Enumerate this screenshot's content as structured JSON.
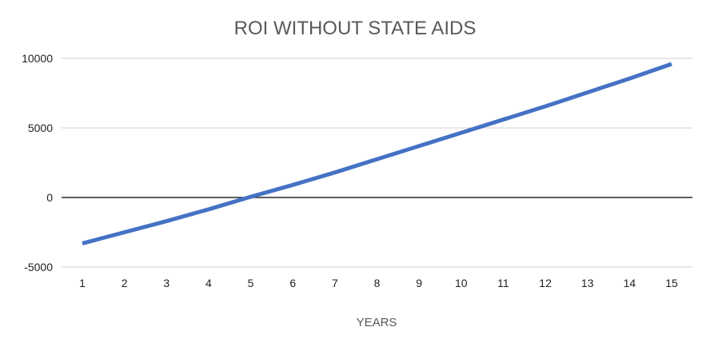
{
  "chart_data": {
    "type": "line",
    "title": "ROI WITHOUT STATE AIDS",
    "xlabel": "YEARS",
    "ylabel": "",
    "categories": [
      "1",
      "2",
      "3",
      "4",
      "5",
      "6",
      "7",
      "8",
      "9",
      "10",
      "11",
      "12",
      "13",
      "14",
      "15"
    ],
    "series": [
      {
        "values": [
          -3300,
          -2500,
          -1700,
          -850,
          50,
          900,
          1800,
          2750,
          3700,
          4650,
          5600,
          6550,
          7550,
          8550,
          9600
        ],
        "color": "#4472C4"
      }
    ],
    "ylim": [
      -5000,
      10000
    ],
    "yticks": [
      "10000",
      "5000",
      "0",
      "-5000"
    ],
    "grid": true,
    "legend": "none",
    "colors": {
      "gridline": "#D9D9D9",
      "zero_line": "#000000",
      "series_line": "#4472C4"
    }
  }
}
